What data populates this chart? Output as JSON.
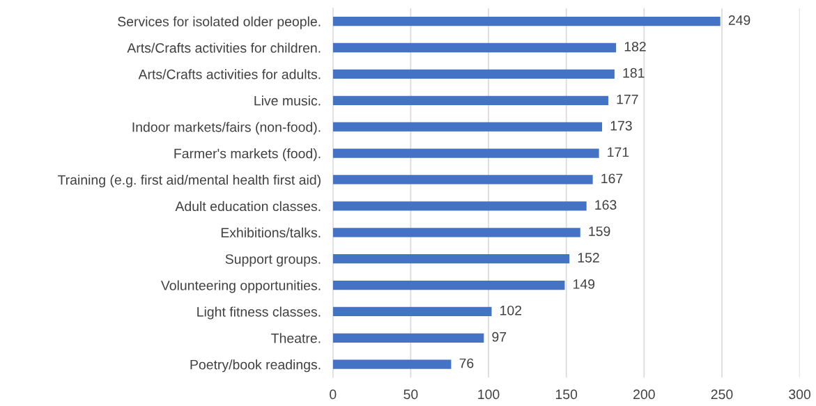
{
  "chart_data": {
    "type": "bar",
    "orientation": "horizontal",
    "categories": [
      "Services for isolated older people.",
      "Arts/Crafts activities for children.",
      "Arts/Crafts activities for adults.",
      "Live music.",
      "Indoor markets/fairs (non-food).",
      "Farmer's markets (food).",
      "Training (e.g. first aid/mental health first aid)",
      "Adult education classes.",
      "Exhibitions/talks.",
      "Support groups.",
      "Volunteering opportunities.",
      "Light fitness classes.",
      "Theatre.",
      "Poetry/book readings."
    ],
    "values": [
      249,
      182,
      181,
      177,
      173,
      171,
      167,
      163,
      159,
      152,
      149,
      102,
      97,
      76
    ],
    "color": "#4472c4",
    "xlim": [
      0,
      300
    ],
    "xticks": [
      0,
      50,
      100,
      150,
      200,
      250,
      300
    ],
    "grid": "x",
    "data_labels": true
  }
}
